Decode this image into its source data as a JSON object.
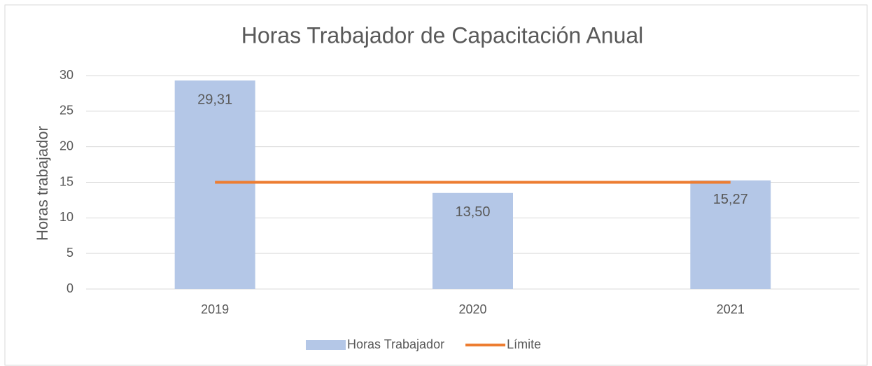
{
  "chart_data": {
    "type": "bar",
    "title": "Horas Trabajador de Capacitación Anual",
    "y_label": "Horas trabajador",
    "categories": [
      "2019",
      "2020",
      "2021"
    ],
    "series": [
      {
        "name": "Horas Trabajador",
        "type": "bar",
        "color": "#b4c7e7",
        "values": [
          29.31,
          13.5,
          15.27
        ],
        "value_labels": [
          "29,31",
          "13,50",
          "15,27"
        ]
      },
      {
        "name": "Límite",
        "type": "line",
        "color": "#ed7d31",
        "values": [
          15,
          15,
          15
        ]
      }
    ],
    "ylim": [
      0,
      30
    ],
    "yticks": [
      0,
      5,
      10,
      15,
      20,
      25,
      30
    ],
    "grid": true,
    "legend": "bottom"
  }
}
